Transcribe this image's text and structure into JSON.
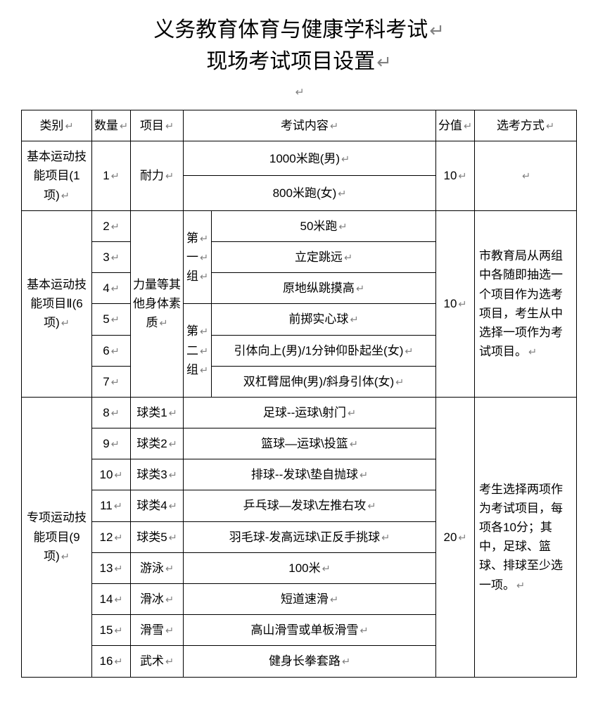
{
  "title_line1": "义务教育体育与健康学科考试",
  "title_line2": "现场考试项目设置",
  "header": {
    "category": "类别",
    "quantity": "数量",
    "item": "项目",
    "content": "考试内容",
    "score": "分值",
    "method": "选考方式"
  },
  "section1": {
    "category": "基本运动技能项目(1项)",
    "num": "1",
    "item": "耐力",
    "content1": "1000米跑(男)",
    "content2": "800米跑(女)",
    "score": "10",
    "method": ""
  },
  "section2": {
    "category": "基本运动技能项目Ⅱ(6项)",
    "item": "力量等其他身体素质",
    "group1": "第一组",
    "group2": "第二组",
    "rows": [
      {
        "num": "2",
        "content": "50米跑"
      },
      {
        "num": "3",
        "content": "立定跳远"
      },
      {
        "num": "4",
        "content": "原地纵跳摸高"
      },
      {
        "num": "5",
        "content": "前掷实心球"
      },
      {
        "num": "6",
        "content": "引体向上(男)/1分钟仰卧起坐(女)"
      },
      {
        "num": "7",
        "content": "双杠臂屈伸(男)/斜身引体(女)"
      }
    ],
    "score": "10",
    "method": "市教育局从两组中各随即抽选一个项目作为选考项目，考生从中选择一项作为考试项目。"
  },
  "section3": {
    "category": "专项运动技能项目(9项)",
    "rows": [
      {
        "num": "8",
        "item": "球类1",
        "content": "足球--运球\\射门"
      },
      {
        "num": "9",
        "item": "球类2",
        "content": "篮球—运球\\投篮"
      },
      {
        "num": "10",
        "item": "球类3",
        "content": "排球--发球\\垫自抛球"
      },
      {
        "num": "11",
        "item": "球类4",
        "content": "乒乓球—发球\\左推右攻"
      },
      {
        "num": "12",
        "item": "球类5",
        "content": "羽毛球-发高远球\\正反手挑球"
      },
      {
        "num": "13",
        "item": "游泳",
        "content": "100米"
      },
      {
        "num": "14",
        "item": "滑冰",
        "content": "短道速滑"
      },
      {
        "num": "15",
        "item": "滑雪",
        "content": "高山滑雪或单板滑雪"
      },
      {
        "num": "16",
        "item": "武术",
        "content": "健身长拳套路"
      }
    ],
    "score": "20",
    "method": "考生选择两项作为考试项目，每项各10分；其中，足球、篮球、排球至少选一项。"
  },
  "colors": {
    "text": "#000000",
    "border": "#000000",
    "background": "#ffffff",
    "return_mark": "#808080"
  },
  "fonts": {
    "title_size": 30,
    "cell_size": 17
  }
}
